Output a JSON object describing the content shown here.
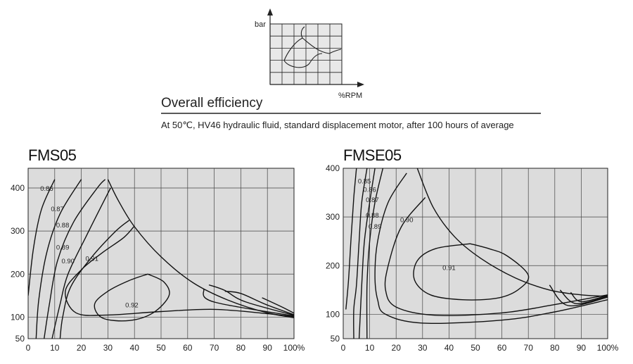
{
  "legend": {
    "y_label": "bar",
    "x_label": "%RPM"
  },
  "header": {
    "title": "Overall efficiency",
    "subtitle": "At 50℃, HV46 hydraulic fluid, standard displacement motor, after 100 hours of average"
  },
  "chart_data": [
    {
      "type": "line",
      "title": "FMS05",
      "xlabel": "",
      "ylabel": "",
      "xlim": [
        0,
        100
      ],
      "ylim": [
        50,
        420
      ],
      "x_ticks": [
        "0",
        "10",
        "20",
        "30",
        "40",
        "50",
        "60",
        "70",
        "80",
        "90",
        "100%"
      ],
      "y_ticks": [
        "50",
        "100",
        "200",
        "300",
        "400"
      ],
      "grid": true,
      "contours": [
        {
          "name": "0.86",
          "label": "0.86",
          "label_at": [
            7,
            398
          ],
          "points": [
            [
              0,
              150
            ],
            [
              2,
              260
            ],
            [
              5,
              350
            ],
            [
              10,
              420
            ]
          ]
        },
        {
          "name": "0.87",
          "label": "0.87",
          "label_at": [
            11,
            351
          ],
          "points": [
            [
              3,
              50
            ],
            [
              4,
              140
            ],
            [
              7,
              250
            ],
            [
              12,
              340
            ],
            [
              20,
              420
            ]
          ]
        },
        {
          "name": "0.88",
          "label": "0.88",
          "label_at": [
            13,
            313
          ],
          "points": [
            [
              6,
              50
            ],
            [
              8,
              130
            ],
            [
              11,
              230
            ],
            [
              17,
              320
            ],
            [
              26,
              400
            ],
            [
              29,
              420
            ]
          ]
        },
        {
          "name": "0.89",
          "label": "0.89",
          "label_at": [
            13,
            262
          ],
          "points": [
            [
              9,
              50
            ],
            [
              12,
              130
            ],
            [
              15,
              200
            ],
            [
              22,
              290
            ],
            [
              31,
              400
            ]
          ]
        },
        {
          "name": "0.90",
          "label": "0.90",
          "label_at": [
            15,
            230
          ],
          "points": [
            [
              12,
              50
            ],
            [
              13,
              100
            ],
            [
              16,
              170
            ],
            [
              24,
              240
            ],
            [
              33,
              300
            ],
            [
              38,
              325
            ]
          ]
        },
        {
          "name": "0.91",
          "label": "0.91",
          "label_at": [
            24,
            236
          ],
          "points": [
            [
              104,
              98
            ],
            [
              90,
              108
            ],
            [
              70,
              118
            ],
            [
              50,
              113
            ],
            [
              30,
              105
            ],
            [
              18,
              110
            ],
            [
              14,
              160
            ],
            [
              20,
              210
            ],
            [
              28,
              250
            ],
            [
              36,
              285
            ],
            [
              40,
              312
            ]
          ]
        },
        {
          "name": "0.92",
          "label": "0.92",
          "label_at": [
            39,
            128
          ],
          "points": [
            [
              45,
              200
            ],
            [
              51,
              182
            ],
            [
              53,
              150
            ],
            [
              47,
              110
            ],
            [
              38,
              92
            ],
            [
              28,
              98
            ],
            [
              25,
              130
            ],
            [
              30,
              160
            ],
            [
              38,
              185
            ],
            [
              45,
              200
            ]
          ]
        },
        {
          "name": "0.92 outer b",
          "label": "",
          "points": [
            [
              104,
              96
            ],
            [
              96,
              122
            ],
            [
              88,
              145
            ]
          ]
        },
        {
          "name": "0.92 outer c",
          "label": "",
          "points": [
            [
              104,
              97
            ],
            [
              90,
              128
            ],
            [
              80,
              155
            ],
            [
              74,
              160
            ]
          ]
        },
        {
          "name": "0.92 outer d",
          "label": "",
          "points": [
            [
              104,
              98
            ],
            [
              82,
              135
            ],
            [
              74,
              162
            ],
            [
              68,
              175
            ]
          ]
        },
        {
          "name": "0.92 outer e",
          "label": "",
          "points": [
            [
              104,
              99
            ],
            [
              70,
              135
            ],
            [
              66,
              165
            ]
          ]
        }
      ],
      "boundary": {
        "name": "max power limit",
        "points": [
          [
            30,
            420
          ],
          [
            34,
            370
          ],
          [
            40,
            310
          ],
          [
            50,
            240
          ],
          [
            62,
            180
          ],
          [
            75,
            140
          ],
          [
            90,
            110
          ],
          [
            104,
            95
          ]
        ]
      }
    },
    {
      "type": "line",
      "title": "FMSE05",
      "xlabel": "",
      "ylabel": "",
      "xlim": [
        0,
        100
      ],
      "ylim": [
        50,
        400
      ],
      "x_ticks": [
        "0",
        "10",
        "20",
        "30",
        "40",
        "50",
        "60",
        "70",
        "80",
        "90",
        "100%"
      ],
      "y_ticks": [
        "50",
        "100",
        "200",
        "300",
        "400"
      ],
      "grid": true,
      "contours": [
        {
          "name": "0.85",
          "label": "0.85",
          "label_at": [
            8,
            373
          ],
          "points": [
            [
              5,
              400
            ],
            [
              4,
              340
            ],
            [
              3,
              260
            ],
            [
              2,
              170
            ],
            [
              1,
              110
            ]
          ]
        },
        {
          "name": "0.86",
          "label": "0.86",
          "label_at": [
            10,
            356
          ],
          "points": [
            [
              9,
              400
            ],
            [
              7,
              330
            ],
            [
              6,
              250
            ],
            [
              5,
              160
            ],
            [
              4,
              110
            ],
            [
              4,
              50
            ]
          ]
        },
        {
          "name": "0.87",
          "label": "0.87",
          "label_at": [
            11,
            335
          ],
          "points": [
            [
              12,
              400
            ],
            [
              10,
              330
            ],
            [
              8,
              250
            ],
            [
              7,
              160
            ],
            [
              6,
              50
            ]
          ]
        },
        {
          "name": "0.88",
          "label": "0.88",
          "label_at": [
            11,
            303
          ],
          "points": [
            [
              15,
              400
            ],
            [
              12,
              330
            ],
            [
              10,
              250
            ],
            [
              9,
              160
            ],
            [
              9,
              50
            ]
          ]
        },
        {
          "name": "0.89",
          "label": "0.89",
          "label_at": [
            12,
            280
          ],
          "points": [
            [
              24,
              390
            ],
            [
              17,
              330
            ],
            [
              13,
              250
            ],
            [
              12,
              180
            ],
            [
              13,
              130
            ],
            [
              16,
              100
            ],
            [
              30,
              82
            ],
            [
              60,
              88
            ],
            [
              80,
              105
            ],
            [
              100,
              130
            ]
          ]
        },
        {
          "name": "0.90",
          "label": "0.90",
          "label_at": [
            24,
            294
          ],
          "points": [
            [
              31,
              340
            ],
            [
              22,
              280
            ],
            [
              17,
              200
            ],
            [
              16,
              150
            ],
            [
              20,
              115
            ],
            [
              35,
              98
            ],
            [
              60,
              103
            ],
            [
              80,
              120
            ],
            [
              100,
              140
            ]
          ]
        },
        {
          "name": "0.91",
          "label": "0.91",
          "label_at": [
            40,
            195
          ],
          "points": [
            [
              48,
              245
            ],
            [
              35,
              235
            ],
            [
              28,
              210
            ],
            [
              27,
              170
            ],
            [
              33,
              140
            ],
            [
              45,
              130
            ],
            [
              58,
              133
            ],
            [
              66,
              150
            ],
            [
              70,
              180
            ],
            [
              62,
              220
            ],
            [
              55,
              235
            ],
            [
              48,
              245
            ]
          ]
        },
        {
          "name": "0.91 outer a",
          "label": "",
          "points": [
            [
              100,
              135
            ],
            [
              85,
              118
            ],
            [
              78,
              160
            ]
          ]
        },
        {
          "name": "0.91 outer b",
          "label": "",
          "points": [
            [
              100,
              137
            ],
            [
              88,
              122
            ],
            [
              82,
              150
            ]
          ]
        },
        {
          "name": "0.91 outer c",
          "label": "",
          "points": [
            [
              100,
              139
            ],
            [
              90,
              126
            ],
            [
              86,
              145
            ]
          ]
        }
      ],
      "boundary": {
        "name": "max power limit",
        "points": [
          [
            28,
            400
          ],
          [
            34,
            320
          ],
          [
            42,
            260
          ],
          [
            52,
            215
          ],
          [
            65,
            175
          ],
          [
            78,
            150
          ],
          [
            90,
            140
          ],
          [
            100,
            137
          ]
        ]
      }
    }
  ]
}
